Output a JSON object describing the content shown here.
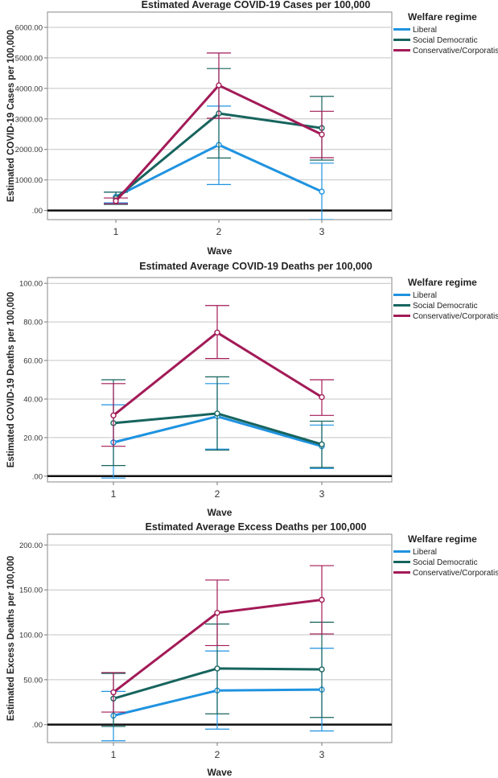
{
  "chart_data": [
    {
      "type": "line",
      "title": "Estimated Average COVID-19 Cases per 100,000",
      "ylabel": "Estimated COVID-19 Cases per 100,000",
      "xlabel": "Wave",
      "categories": [
        "1",
        "2",
        "3"
      ],
      "ylim": [
        -300,
        6500
      ],
      "yticks": [
        0,
        1000,
        2000,
        3000,
        4000,
        5000,
        6000
      ],
      "ytick_labels": [
        ".00",
        "1000.00",
        "2000.00",
        "3000.00",
        "4000.00",
        "5000.00",
        "6000.00"
      ],
      "grid": true,
      "error_bars": true,
      "legend": {
        "title": "Welfare regime",
        "position": "top-right"
      },
      "series": [
        {
          "name": "Liberal",
          "color": "#1f93e0",
          "values": [
            450,
            2150,
            620
          ],
          "lower": [
            250,
            850,
            -300
          ],
          "upper": [
            600,
            3420,
            1550
          ]
        },
        {
          "name": "Social Democratic",
          "color": "#17645e",
          "values": [
            400,
            3180,
            2700
          ],
          "lower": [
            200,
            1720,
            1650
          ],
          "upper": [
            600,
            4650,
            3740
          ]
        },
        {
          "name": "Conservative/Corporatist",
          "color": "#a31a57",
          "values": [
            310,
            4100,
            2490
          ],
          "lower": [
            220,
            3020,
            1730
          ],
          "upper": [
            410,
            5160,
            3250
          ]
        }
      ]
    },
    {
      "type": "line",
      "title": "Estimated Average COVID-19 Deaths per 100,000",
      "ylabel": "Estimated COVID-19 Deaths per 100,000",
      "xlabel": "Wave",
      "categories": [
        "1",
        "2",
        "3"
      ],
      "ylim": [
        -3,
        103
      ],
      "yticks": [
        0,
        20,
        40,
        60,
        80,
        100
      ],
      "ytick_labels": [
        ".00",
        "20.00",
        "40.00",
        "60.00",
        "80.00",
        "100.00"
      ],
      "grid": true,
      "error_bars": true,
      "legend": {
        "title": "Welfare regime",
        "position": "top-right"
      },
      "series": [
        {
          "name": "Liberal",
          "color": "#1f93e0",
          "values": [
            17.5,
            31,
            15.5
          ],
          "lower": [
            -1,
            14,
            4
          ],
          "upper": [
            37,
            48,
            26.5
          ]
        },
        {
          "name": "Social Democratic",
          "color": "#17645e",
          "values": [
            27.5,
            32.5,
            16.5
          ],
          "lower": [
            5.5,
            13.5,
            4.5
          ],
          "upper": [
            50,
            51.5,
            28.5
          ]
        },
        {
          "name": "Conservative/Corporatist",
          "color": "#a31a57",
          "values": [
            31.5,
            74.5,
            41
          ],
          "lower": [
            15.5,
            61,
            31.5
          ],
          "upper": [
            48,
            88.5,
            50
          ]
        }
      ]
    },
    {
      "type": "line",
      "title": "Estimated Average Excess Deaths per 100,000",
      "ylabel": "Estimated Excess Deaths per 100,000",
      "xlabel": "Wave",
      "categories": [
        "1",
        "2",
        "3"
      ],
      "ylim": [
        -20,
        212
      ],
      "yticks": [
        0,
        50,
        100,
        150,
        200
      ],
      "ytick_labels": [
        ".00",
        "50.00",
        "100.00",
        "150.00",
        "200.00"
      ],
      "grid": true,
      "error_bars": true,
      "legend": {
        "title": "Welfare regime",
        "position": "top-right"
      },
      "series": [
        {
          "name": "Liberal",
          "color": "#1f93e0",
          "values": [
            10,
            38,
            39
          ],
          "lower": [
            -18,
            -5,
            -7
          ],
          "upper": [
            37,
            82,
            85
          ]
        },
        {
          "name": "Social Democratic",
          "color": "#17645e",
          "values": [
            29,
            62.5,
            61.5
          ],
          "lower": [
            -2,
            12,
            8
          ],
          "upper": [
            57,
            112,
            114
          ]
        },
        {
          "name": "Conservative/Corporatist",
          "color": "#a31a57",
          "values": [
            36,
            124.5,
            139
          ],
          "lower": [
            14,
            88,
            101
          ],
          "upper": [
            58,
            161,
            177
          ]
        }
      ]
    }
  ]
}
